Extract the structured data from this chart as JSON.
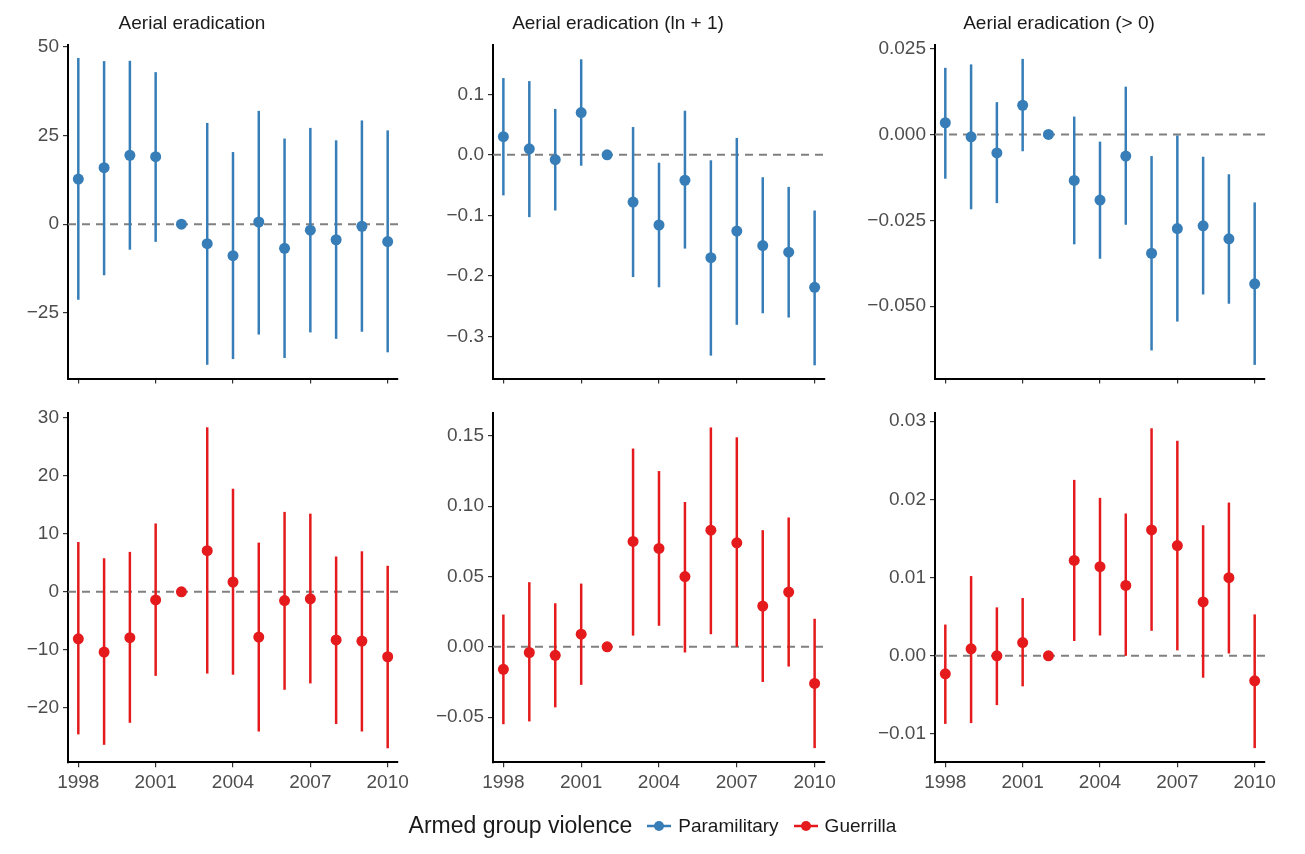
{
  "chart_data": [
    {
      "type": "scatter",
      "title": "Aerial eradication",
      "x": [
        1998,
        1999,
        2000,
        2001,
        2002,
        2003,
        2004,
        2005,
        2006,
        2007,
        2008,
        2009,
        2010
      ],
      "xlim": [
        1997.6,
        2010.4
      ],
      "xticks": [
        1998,
        2001,
        2004,
        2007,
        2010
      ],
      "ylim": [
        -43.5,
        50.5
      ],
      "yticks": [
        {
          "value": -25,
          "label": "−25"
        },
        0,
        25,
        50
      ],
      "tick_labels": "y",
      "marker": "circle",
      "legend": "bottom",
      "legend_title": "Armed group violence",
      "ref_lines": [
        {
          "axis": "y",
          "value": 0,
          "color": "#808080",
          "line_style": "dashed"
        }
      ],
      "series": [
        {
          "name": "Paramilitary",
          "color": "#377eb8",
          "values": [
            12.7,
            15.9,
            19.4,
            19.0,
            0,
            -5.5,
            -8.9,
            0.6,
            -6.8,
            -1.7,
            -4.4,
            -0.6,
            -4.9
          ],
          "errors": [
            [
              -21.3,
              46.8
            ],
            [
              -14.4,
              45.9
            ],
            [
              -7.2,
              46.0
            ],
            [
              -5.0,
              42.8
            ],
            null,
            [
              -39.6,
              28.5
            ],
            [
              -38.0,
              20.3
            ],
            [
              -31.1,
              31.9
            ],
            [
              -37.7,
              24.1
            ],
            [
              -30.5,
              27.1
            ],
            [
              -32.3,
              23.6
            ],
            [
              -30.3,
              29.2
            ],
            [
              -36.1,
              26.4
            ]
          ]
        }
      ]
    },
    {
      "type": "scatter",
      "title": "Aerial eradication (ln + 1)",
      "x": [
        1998,
        1999,
        2000,
        2001,
        2002,
        2003,
        2004,
        2005,
        2006,
        2007,
        2008,
        2009,
        2010
      ],
      "xlim": [
        1997.6,
        2010.4
      ],
      "xticks": [
        1998,
        2001,
        2004,
        2007,
        2010
      ],
      "ylim": [
        -0.37,
        0.182
      ],
      "yticks": [
        {
          "value": -0.3,
          "label": "−0.3"
        },
        {
          "value": -0.2,
          "label": "−0.2"
        },
        {
          "value": -0.1,
          "label": "−0.1"
        },
        {
          "value": 0,
          "label": "0.0"
        },
        0.1
      ],
      "tick_labels": "y",
      "marker": "circle",
      "ref_lines": [
        {
          "axis": "y",
          "value": 0,
          "color": "#808080",
          "line_style": "dashed"
        }
      ],
      "series": [
        {
          "color": "#377eb8",
          "values": [
            0.03,
            0.01,
            -0.008,
            0.07,
            0,
            -0.078,
            -0.116,
            -0.042,
            -0.17,
            -0.126,
            -0.15,
            -0.161,
            -0.219
          ],
          "errors": [
            [
              -0.067,
              0.127
            ],
            [
              -0.103,
              0.122
            ],
            [
              -0.092,
              0.076
            ],
            [
              -0.018,
              0.158
            ],
            null,
            [
              -0.202,
              0.046
            ],
            [
              -0.219,
              -0.013
            ],
            [
              -0.155,
              0.073
            ],
            [
              -0.332,
              -0.009
            ],
            [
              -0.281,
              0.028
            ],
            [
              -0.262,
              -0.037
            ],
            [
              -0.269,
              -0.053
            ],
            [
              -0.348,
              -0.092
            ]
          ]
        }
      ]
    },
    {
      "type": "scatter",
      "title": "Aerial eradication (> 0)",
      "x": [
        1998,
        1999,
        2000,
        2001,
        2002,
        2003,
        2004,
        2005,
        2006,
        2007,
        2008,
        2009,
        2010
      ],
      "xlim": [
        1997.6,
        2010.4
      ],
      "xticks": [
        1998,
        2001,
        2004,
        2007,
        2010
      ],
      "ylim": [
        -0.0711,
        0.0261
      ],
      "yticks": [
        {
          "value": -0.05,
          "label": "−0.050"
        },
        {
          "value": -0.025,
          "label": "−0.025"
        },
        {
          "value": 0,
          "label": "0.000"
        },
        0.025
      ],
      "tick_labels": "y",
      "marker": "circle",
      "ref_lines": [
        {
          "axis": "y",
          "value": 0,
          "color": "#808080",
          "line_style": "dashed"
        }
      ],
      "series": [
        {
          "color": "#377eb8",
          "values": [
            0.0034,
            -0.0007,
            -0.0054,
            0.0085,
            0,
            -0.0134,
            -0.0191,
            -0.0063,
            -0.0346,
            -0.0274,
            -0.0266,
            -0.0304,
            -0.0435
          ],
          "errors": [
            [
              -0.0129,
              0.0194
            ],
            [
              -0.0218,
              0.0204
            ],
            [
              -0.02,
              0.0094
            ],
            [
              -0.0049,
              0.022
            ],
            null,
            [
              -0.032,
              0.0052
            ],
            [
              -0.0362,
              -0.0021
            ],
            [
              -0.0263,
              0.0139
            ],
            [
              -0.0629,
              -0.0063
            ],
            [
              -0.0545,
              -0.0003
            ],
            [
              -0.0466,
              -0.0065
            ],
            [
              -0.0493,
              -0.0116
            ],
            [
              -0.0671,
              -0.0198
            ]
          ]
        }
      ]
    },
    {
      "type": "scatter",
      "x": [
        1998,
        1999,
        2000,
        2001,
        2002,
        2003,
        2004,
        2005,
        2006,
        2007,
        2008,
        2009,
        2010
      ],
      "xlim": [
        1997.6,
        2010.4
      ],
      "xticks": [
        1998,
        2001,
        2004,
        2007,
        2010
      ],
      "ylim": [
        -29.4,
        30.8
      ],
      "yticks": [
        {
          "value": -20,
          "label": "−20"
        },
        {
          "value": -10,
          "label": "−10"
        },
        0,
        10,
        20,
        30
      ],
      "marker": "circle",
      "legend": "bottom",
      "ref_lines": [
        {
          "axis": "y",
          "value": 0,
          "color": "#808080",
          "line_style": "dashed"
        }
      ],
      "series": [
        {
          "name": "Guerrilla",
          "color": "#e41a1c",
          "values": [
            -8.1,
            -10.4,
            -7.9,
            -1.4,
            0,
            7.1,
            1.7,
            -7.8,
            -1.5,
            -1.2,
            -8.3,
            -8.5,
            -11.2
          ],
          "errors": [
            [
              -24.6,
              8.6
            ],
            [
              -26.4,
              5.8
            ],
            [
              -22.6,
              6.9
            ],
            [
              -14.5,
              11.8
            ],
            null,
            [
              -14.1,
              28.4
            ],
            [
              -14.3,
              17.8
            ],
            [
              -24.1,
              8.5
            ],
            [
              -16.9,
              13.8
            ],
            [
              -15.8,
              13.5
            ],
            [
              -22.8,
              6.1
            ],
            [
              -24.1,
              7.0
            ],
            [
              -27.0,
              4.5
            ]
          ]
        }
      ]
    },
    {
      "type": "scatter",
      "x": [
        1998,
        1999,
        2000,
        2001,
        2002,
        2003,
        2004,
        2005,
        2006,
        2007,
        2008,
        2009,
        2010
      ],
      "xlim": [
        1997.6,
        2010.4
      ],
      "xticks": [
        1998,
        2001,
        2004,
        2007,
        2010
      ],
      "ylim": [
        -0.082,
        0.166
      ],
      "yticks": [
        {
          "value": -0.05,
          "label": "−0.05"
        },
        {
          "value": 0,
          "label": "0.00"
        },
        0.05,
        {
          "value": 0.1,
          "label": "0.10"
        },
        0.15
      ],
      "marker": "circle",
      "ref_lines": [
        {
          "axis": "y",
          "value": 0,
          "color": "#808080",
          "line_style": "dashed"
        }
      ],
      "series": [
        {
          "color": "#e41a1c",
          "values": [
            -0.016,
            -0.004,
            -0.006,
            0.009,
            0,
            0.075,
            0.07,
            0.05,
            0.083,
            0.074,
            0.029,
            0.039,
            -0.026
          ],
          "errors": [
            [
              -0.055,
              0.023
            ],
            [
              -0.053,
              0.046
            ],
            [
              -0.043,
              0.031
            ],
            [
              -0.027,
              0.045
            ],
            null,
            [
              0.008,
              0.141
            ],
            [
              0.015,
              0.125
            ],
            [
              -0.004,
              0.103
            ],
            [
              0.009,
              0.156
            ],
            [
              0.0,
              0.149
            ],
            [
              -0.025,
              0.083
            ],
            [
              -0.014,
              0.092
            ],
            [
              -0.072,
              0.02
            ]
          ]
        }
      ]
    },
    {
      "type": "scatter",
      "x": [
        1998,
        1999,
        2000,
        2001,
        2002,
        2003,
        2004,
        2005,
        2006,
        2007,
        2008,
        2009,
        2010
      ],
      "xlim": [
        1997.6,
        2010.4
      ],
      "xticks": [
        1998,
        2001,
        2004,
        2007,
        2010
      ],
      "ylim": [
        -0.0136,
        0.031
      ],
      "yticks": [
        {
          "value": -0.01,
          "label": "−0.01"
        },
        {
          "value": 0,
          "label": "0.00"
        },
        0.01,
        0.02,
        0.03
      ],
      "marker": "circle",
      "ref_lines": [
        {
          "axis": "y",
          "value": 0,
          "color": "#808080",
          "line_style": "dashed"
        }
      ],
      "series": [
        {
          "color": "#e41a1c",
          "values": [
            -0.0023,
            0.0009,
            0.0,
            0.0017,
            0,
            0.0122,
            0.0114,
            0.009,
            0.0161,
            0.0141,
            0.0069,
            0.01,
            -0.0032
          ],
          "errors": [
            [
              -0.0087,
              0.004
            ],
            [
              -0.0086,
              0.0102
            ],
            [
              -0.0063,
              0.0062
            ],
            [
              -0.0039,
              0.0074
            ],
            null,
            [
              0.0019,
              0.0225
            ],
            [
              0.0026,
              0.0202
            ],
            [
              0.0,
              0.0182
            ],
            [
              0.0032,
              0.0291
            ],
            [
              0.0007,
              0.0275
            ],
            [
              -0.0028,
              0.0167
            ],
            [
              0.0003,
              0.0196
            ],
            [
              -0.0118,
              0.0053
            ]
          ]
        }
      ]
    }
  ]
}
